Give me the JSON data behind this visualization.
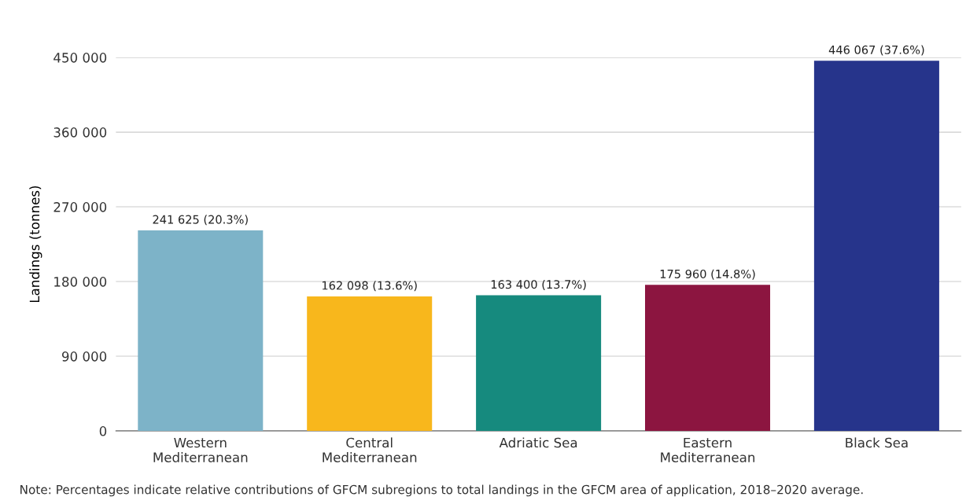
{
  "chart_data": {
    "type": "bar",
    "ylabel": "Landings (tonnes)",
    "categories": [
      "Western\nMediterranean",
      "Central\nMediterranean",
      "Adriatic Sea",
      "Eastern\nMediterranean",
      "Black Sea"
    ],
    "values": [
      241625,
      162098,
      163400,
      175960,
      446067
    ],
    "colors": [
      "#7db3c8",
      "#f8b71c",
      "#168a7e",
      "#8c1540",
      "#26348b"
    ],
    "value_labels": [
      "241 625 (20.3%)",
      "162 098 (13.6%)",
      "163 400 (13.7%)",
      "175 960 (14.8%)",
      "446 067 (37.6%)"
    ],
    "ylim": [
      0,
      450000
    ],
    "yticks": [
      {
        "value": 0,
        "label": "0"
      },
      {
        "value": 90000,
        "label": "90 000"
      },
      {
        "value": 180000,
        "label": "180 000"
      },
      {
        "value": 270000,
        "label": "270 000"
      },
      {
        "value": 360000,
        "label": "360 000"
      },
      {
        "value": 450000,
        "label": "450 000"
      }
    ],
    "grid": "y",
    "legend": false,
    "annotations": [
      "Note: Percentages indicate relative contributions of GFCM subregions to total landings in the GFCM area of application, 2018–2020 average."
    ]
  }
}
